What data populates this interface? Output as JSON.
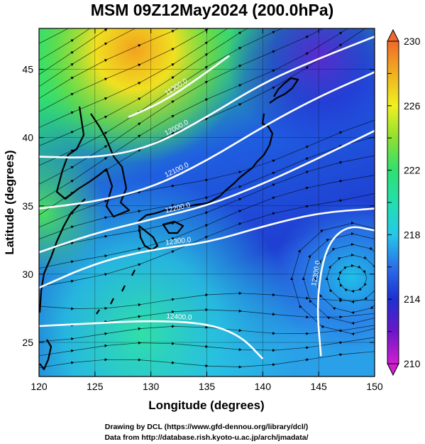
{
  "title": "MSM 09Z12May2024 (200.0hPa)",
  "x_axis": {
    "label": "Longitude (degrees)",
    "ticks": [
      "120",
      "125",
      "130",
      "135",
      "140",
      "145",
      "150"
    ]
  },
  "y_axis": {
    "label": "Latitude (degrees)",
    "ticks": [
      "25",
      "30",
      "35",
      "40",
      "45"
    ]
  },
  "colorbar": {
    "ticks": [
      "210",
      "214",
      "218",
      "222",
      "226",
      "230"
    ],
    "colors": [
      "#d11ed1",
      "#6a18c8",
      "#1f2fd0",
      "#2a70e8",
      "#25c8e8",
      "#21e0b0",
      "#2fe070",
      "#8ee030",
      "#f0f020",
      "#f0b020",
      "#ef6a2a"
    ]
  },
  "contours": [
    {
      "label": "11900.0",
      "lat_at_lon": [
        [
          128,
          41.5
        ],
        [
          131,
          42.6
        ],
        [
          134,
          44.2
        ],
        [
          137,
          46.0
        ]
      ]
    },
    {
      "label": "12000.0",
      "lat_at_lon": [
        [
          120,
          38.6
        ],
        [
          125,
          38.5
        ],
        [
          130,
          39.3
        ],
        [
          135,
          41.5
        ],
        [
          140,
          44.0
        ],
        [
          145,
          45.8
        ],
        [
          150,
          47.4
        ]
      ]
    },
    {
      "label": "12100.0",
      "lat_at_lon": [
        [
          120,
          34.8
        ],
        [
          125,
          35.3
        ],
        [
          130,
          36.3
        ],
        [
          135,
          38.3
        ],
        [
          140,
          40.8
        ],
        [
          145,
          43.0
        ],
        [
          150,
          44.8
        ]
      ]
    },
    {
      "label": "12200.0",
      "lat_at_lon": [
        [
          120,
          31.6
        ],
        [
          125,
          33.0
        ],
        [
          130,
          34.0
        ],
        [
          135,
          35.0
        ],
        [
          140,
          36.6
        ],
        [
          145,
          38.5
        ],
        [
          150,
          40.5
        ]
      ]
    },
    {
      "label": "12300.0",
      "lat_at_lon": [
        [
          120,
          29.0
        ],
        [
          125,
          30.8
        ],
        [
          130,
          31.8
        ],
        [
          135,
          32.3
        ],
        [
          140,
          33.5
        ],
        [
          145,
          34.5
        ],
        [
          150,
          34.8
        ]
      ]
    },
    {
      "label": "12400.0",
      "lat_at_lon": [
        [
          120,
          26.2
        ],
        [
          125,
          26.4
        ],
        [
          130,
          26.6
        ],
        [
          135,
          26.4
        ],
        [
          138,
          25.5
        ],
        [
          140,
          23.8
        ]
      ]
    },
    {
      "label": "12300.0",
      "lat_at_lon": [
        [
          145.2,
          24.0
        ],
        [
          144.8,
          28.0
        ],
        [
          145.6,
          32.0
        ],
        [
          147.5,
          33.6
        ],
        [
          150,
          33.2
        ]
      ]
    }
  ],
  "credits": {
    "line1": "Drawing by DCL (https://www.gfd-dennou.org/library/dcl/)",
    "line2": "Data from http://database.rish.kyoto-u.ac.jp/arch/jmadata/"
  }
}
